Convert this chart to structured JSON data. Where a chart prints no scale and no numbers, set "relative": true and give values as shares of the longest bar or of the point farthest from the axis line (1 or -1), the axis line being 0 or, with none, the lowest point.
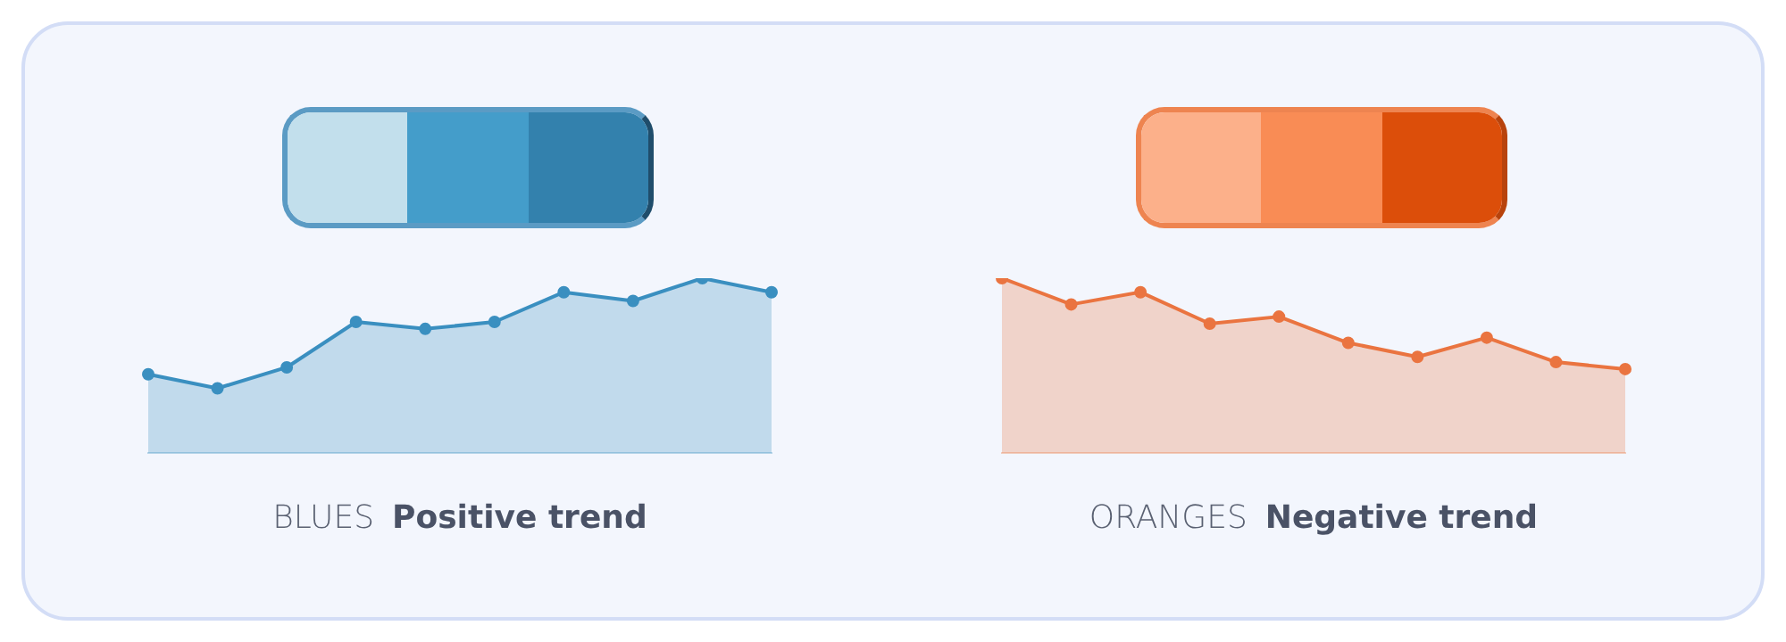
{
  "chart_data": [
    {
      "type": "area",
      "title": "BLUES",
      "subtitle": "Positive trend",
      "relative": true,
      "marker": "circle",
      "categories": [
        null,
        null,
        null,
        null,
        null,
        null,
        null,
        null,
        null,
        null
      ],
      "series": [
        {
          "color": "#3a8fc0",
          "values": [
            0.45,
            0.37,
            0.49,
            0.75,
            0.71,
            0.75,
            0.92,
            0.87,
            1,
            0.92
          ]
        }
      ]
    },
    {
      "type": "area",
      "title": "ORANGES",
      "subtitle": "Negative trend",
      "relative": true,
      "marker": "circle",
      "categories": [
        null,
        null,
        null,
        null,
        null,
        null,
        null,
        null,
        null,
        null
      ],
      "series": [
        {
          "color": "#ea7440",
          "values": [
            1,
            0.85,
            0.92,
            0.74,
            0.78,
            0.63,
            0.55,
            0.66,
            0.52,
            0.48
          ]
        }
      ]
    }
  ]
}
